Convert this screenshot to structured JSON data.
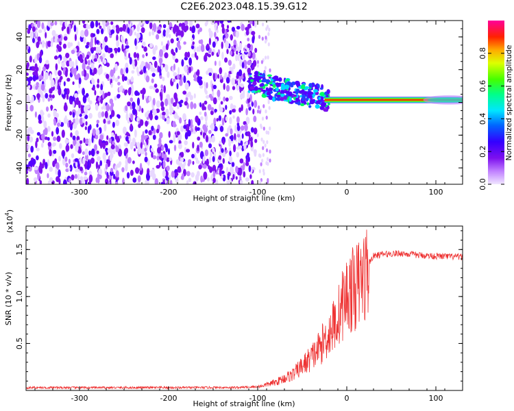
{
  "page": {
    "title": "C2E6.2023.048.15.39.G12"
  },
  "chart_data": [
    {
      "type": "heatmap",
      "name": "spectrogram",
      "title": "C2E6.2023.048.15.39.G12",
      "xlabel": "Height of straight line (km)",
      "ylabel": "Frequency (Hz)",
      "xlim": [
        -360,
        130
      ],
      "ylim": [
        -50,
        50
      ],
      "x_ticks": [
        -300,
        -200,
        -100,
        0,
        100
      ],
      "y_ticks": [
        -40,
        -20,
        0,
        20,
        40
      ],
      "grid": false,
      "colormap": [
        "#e8d8ff",
        "#c080ff",
        "#7d10ee",
        "#5500ff",
        "#2244ff",
        "#00d8ff",
        "#00ff66",
        "#d8ff00",
        "#ffaa00",
        "#ff2200",
        "#ff0088"
      ],
      "colorbar": {
        "label": "Normalized spectral amplitude",
        "range": [
          0,
          1
        ],
        "ticks": [
          0.0,
          0.2,
          0.4,
          0.6,
          0.8
        ]
      },
      "features": {
        "noise_region_x": [
          -360,
          -90
        ],
        "tone_frequency_hz": 1.5,
        "tone_start_x": -25,
        "transition_x": [
          -110,
          -20
        ]
      }
    },
    {
      "type": "line",
      "name": "snr",
      "xlabel": "Height of straight line (km)",
      "ylabel": "SNR (10 * v/v)",
      "scale_label": "(x10",
      "scale_exponent": "4",
      "scale_close": ")",
      "xlim": [
        -360,
        130
      ],
      "ylim": [
        0,
        17500
      ],
      "x_ticks": [
        -300,
        -200,
        -100,
        0,
        100
      ],
      "y_ticks": [
        5000,
        10000,
        15000
      ],
      "y_tick_labels": [
        "0.5",
        "1.0",
        "1.5"
      ],
      "grid": false,
      "series": [
        {
          "color": "#ee3333",
          "x": [
            -360,
            -300,
            -200,
            -120,
            -100,
            -80,
            -60,
            -50,
            -40,
            -30,
            -20,
            -10,
            -5,
            0,
            5,
            10,
            15,
            20,
            25,
            30,
            40,
            60,
            80,
            100,
            130
          ],
          "y": [
            300,
            300,
            300,
            320,
            400,
            900,
            1800,
            2700,
            3600,
            4800,
            6300,
            8000,
            9500,
            10500,
            11000,
            11400,
            12000,
            12800,
            13600,
            14300,
            14500,
            14600,
            14400,
            14300,
            14200
          ]
        }
      ]
    }
  ]
}
